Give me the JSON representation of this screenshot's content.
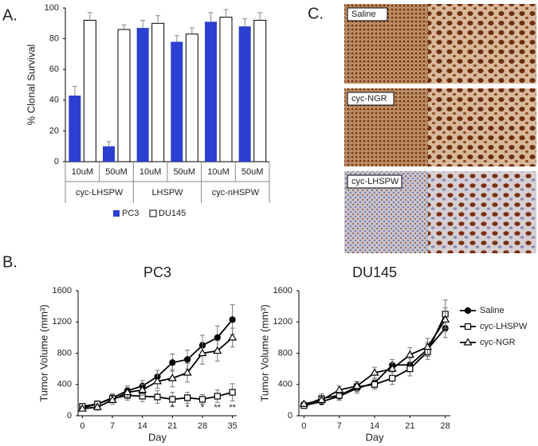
{
  "panel_labels": [
    "A.",
    "B.",
    "C."
  ],
  "chart_data": [
    {
      "type": "bar",
      "ylabel": "% Clonal Survival",
      "categories": [
        "10uM",
        "50uM",
        "10uM",
        "50uM",
        "10uM",
        "50uM"
      ],
      "groups": [
        "cyc-LHSPW",
        "LHSPW",
        "cyc-nHSPW"
      ],
      "series": [
        {
          "name": "PC3",
          "color": "#2b3fd0",
          "values": [
            43,
            10,
            87,
            78,
            91,
            88
          ],
          "errors": [
            6,
            3,
            5,
            4,
            6,
            5
          ]
        },
        {
          "name": "DU145",
          "color": "#ffffff",
          "values": [
            92,
            86,
            90,
            83,
            94,
            92
          ],
          "errors": [
            5,
            3,
            5,
            4,
            5,
            5
          ]
        }
      ],
      "ylim": [
        0,
        100
      ],
      "yticks": [
        0,
        20,
        40,
        60,
        80,
        100
      ]
    },
    {
      "type": "line",
      "title": "PC3",
      "xlabel": "Day",
      "ylabel": "Tumor Volume (mm³)",
      "x": [
        0,
        3.5,
        7,
        10.5,
        14,
        17.5,
        21,
        24.5,
        28,
        31.5,
        35
      ],
      "series": [
        {
          "color": "#000000",
          "marker": "circle",
          "values": [
            100,
            150,
            230,
            320,
            380,
            500,
            680,
            720,
            900,
            1000,
            1230
          ],
          "errors": [
            30,
            40,
            50,
            60,
            70,
            80,
            110,
            120,
            130,
            150,
            190
          ]
        },
        {
          "color": "#000000",
          "marker": "square",
          "values": [
            120,
            150,
            220,
            260,
            250,
            240,
            210,
            230,
            210,
            250,
            300
          ],
          "errors": [
            30,
            40,
            50,
            60,
            70,
            80,
            90,
            70,
            60,
            80,
            110
          ]
        },
        {
          "color": "#000000",
          "marker": "triangle",
          "values": [
            90,
            110,
            200,
            300,
            330,
            440,
            480,
            550,
            800,
            830,
            1000
          ],
          "errors": [
            30,
            40,
            50,
            60,
            70,
            90,
            110,
            120,
            140,
            130,
            120
          ]
        }
      ],
      "annotations": [
        {
          "x": 21,
          "text": "*"
        },
        {
          "x": 24.5,
          "text": "*"
        },
        {
          "x": 28,
          "text": "*"
        },
        {
          "x": 31.5,
          "text": "**"
        },
        {
          "x": 35,
          "text": "**"
        }
      ],
      "xlim": [
        -1,
        36
      ],
      "xticks": [
        0,
        7,
        14,
        21,
        28,
        35
      ],
      "ylim": [
        0,
        1600
      ],
      "yticks": [
        0,
        400,
        800,
        1200,
        1600
      ]
    },
    {
      "type": "line",
      "title": "DU145",
      "xlabel": "Day",
      "ylabel": "Tumor Volume (mm³)",
      "legend": "right",
      "x": [
        0,
        3.5,
        7,
        10.5,
        14,
        17.5,
        21,
        24.5,
        28
      ],
      "series": [
        {
          "name": "Saline",
          "color": "#000000",
          "marker": "circle",
          "values": [
            130,
            180,
            250,
            350,
            420,
            650,
            650,
            850,
            1120
          ],
          "errors": [
            30,
            40,
            50,
            60,
            60,
            70,
            80,
            90,
            120
          ]
        },
        {
          "name": "cyc-LHSPW",
          "color": "#000000",
          "marker": "square",
          "values": [
            130,
            220,
            260,
            370,
            400,
            480,
            600,
            820,
            1300
          ],
          "errors": [
            30,
            60,
            60,
            60,
            60,
            80,
            90,
            100,
            180
          ]
        },
        {
          "name": "cyc-NGR",
          "color": "#000000",
          "marker": "triangle",
          "values": [
            150,
            200,
            330,
            380,
            550,
            600,
            780,
            880,
            1230
          ],
          "errors": [
            30,
            40,
            50,
            60,
            70,
            80,
            90,
            110,
            150
          ]
        }
      ],
      "xlim": [
        -1,
        29
      ],
      "xticks": [
        0,
        7,
        14,
        21,
        28
      ],
      "ylim": [
        0,
        1600
      ],
      "yticks": [
        0,
        400,
        800,
        1200,
        1600
      ]
    }
  ],
  "images": [
    {
      "label": "Saline"
    },
    {
      "label": "cyc-NGR"
    },
    {
      "label": "cyc-LHSPW"
    }
  ]
}
